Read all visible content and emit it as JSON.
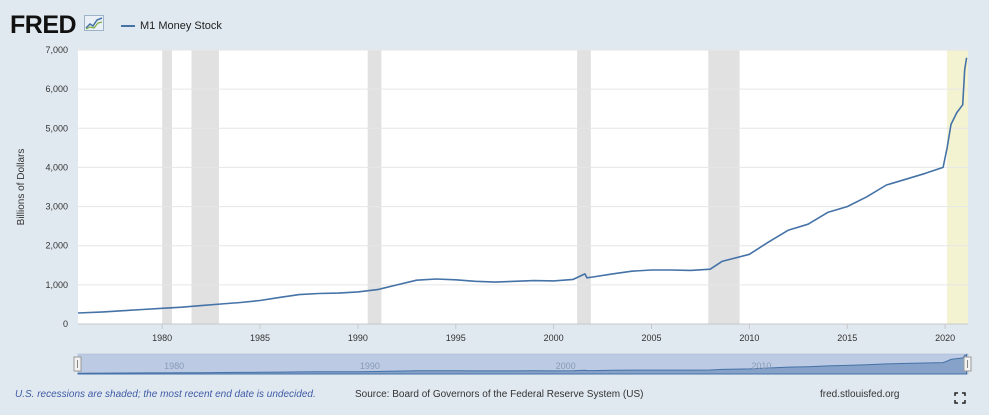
{
  "header": {
    "logo_text": "FRED",
    "logo_icon": "line-graph-icon",
    "legend_label": "M1 Money Stock"
  },
  "chart_data": {
    "type": "line",
    "ylabel": "Billions of Dollars",
    "xlim": [
      1975.7,
      2021.17
    ],
    "ylim": [
      0,
      7000
    ],
    "y_ticks": [
      0,
      1000,
      2000,
      3000,
      4000,
      5000,
      6000,
      7000
    ],
    "y_tick_labels": [
      "0",
      "1,000",
      "2,000",
      "3,000",
      "4,000",
      "5,000",
      "6,000",
      "7,000"
    ],
    "x_ticks": [
      1980,
      1985,
      1990,
      1995,
      2000,
      2005,
      2010,
      2015,
      2020
    ],
    "x_tick_labels": [
      "1980",
      "1985",
      "1990",
      "1995",
      "2000",
      "2005",
      "2010",
      "2015",
      "2020"
    ],
    "grid": true,
    "legend_position": "top-left",
    "recessions": [
      [
        1980.0,
        1980.5
      ],
      [
        1981.5,
        1982.9
      ],
      [
        1990.5,
        1991.2
      ],
      [
        2001.2,
        2001.9
      ],
      [
        2007.9,
        2009.5
      ],
      [
        2020.1,
        2021.17
      ]
    ],
    "series": [
      {
        "name": "M1 Money Stock",
        "color": "#4572a7",
        "x": [
          1975.7,
          1977,
          1978,
          1979,
          1980,
          1981,
          1982,
          1983,
          1984,
          1985,
          1986,
          1987,
          1988,
          1989,
          1990,
          1991,
          1992,
          1993,
          1994,
          1995,
          1996,
          1997,
          1998,
          1999,
          2000,
          2001,
          2001.6,
          2001.7,
          2002,
          2003,
          2004,
          2005,
          2006,
          2007,
          2008,
          2008.6,
          2009,
          2010,
          2011,
          2012,
          2013,
          2014,
          2015,
          2016,
          2017,
          2018,
          2019,
          2019.9,
          2020.1,
          2020.3,
          2020.6,
          2020.9,
          2021.0,
          2021.1
        ],
        "y": [
          280,
          310,
          340,
          370,
          400,
          430,
          470,
          510,
          550,
          600,
          680,
          750,
          780,
          790,
          820,
          880,
          1000,
          1120,
          1150,
          1130,
          1090,
          1070,
          1090,
          1110,
          1100,
          1140,
          1280,
          1180,
          1200,
          1280,
          1350,
          1380,
          1380,
          1370,
          1400,
          1600,
          1650,
          1780,
          2100,
          2400,
          2550,
          2850,
          3000,
          3250,
          3550,
          3700,
          3850,
          4000,
          4500,
          5100,
          5400,
          5600,
          6500,
          6800
        ]
      }
    ]
  },
  "navigator": {
    "labels": [
      "1980",
      "1990",
      "2000",
      "2010"
    ]
  },
  "footer": {
    "recession_note": "U.S. recessions are shaded; the most recent end date is undecided.",
    "source": "Source: Board of Governors of the Federal Reserve System (US)",
    "site": "fred.stlouisfed.org",
    "fullscreen_icon": "fullscreen-icon"
  }
}
